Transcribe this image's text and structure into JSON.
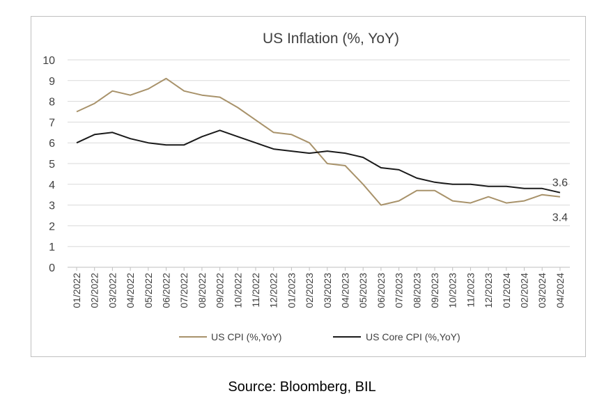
{
  "source": "Source: Bloomberg, BIL",
  "chart_data": {
    "type": "line",
    "title": "US Inflation (%, YoY)",
    "xlabel": "",
    "ylabel": "",
    "ylim": [
      0,
      10
    ],
    "yticks": [
      0,
      1,
      2,
      3,
      4,
      5,
      6,
      7,
      8,
      9,
      10
    ],
    "grid": true,
    "legend_position": "bottom",
    "categories": [
      "01/2022",
      "02/2022",
      "03/2022",
      "04/2022",
      "05/2022",
      "06/2022",
      "07/2022",
      "08/2022",
      "09/2022",
      "10/2022",
      "11/2022",
      "12/2022",
      "01/2023",
      "02/2023",
      "03/2023",
      "04/2023",
      "05/2023",
      "06/2023",
      "07/2023",
      "08/2023",
      "09/2023",
      "10/2023",
      "11/2023",
      "12/2023",
      "01/2024",
      "02/2024",
      "03/2024",
      "04/2024"
    ],
    "series": [
      {
        "name": "US CPI (%,YoY)",
        "color": "#a8926a",
        "values": [
          7.5,
          7.9,
          8.5,
          8.3,
          8.6,
          9.1,
          8.5,
          8.3,
          8.2,
          7.7,
          7.1,
          6.5,
          6.4,
          6.0,
          5.0,
          4.9,
          4.0,
          3.0,
          3.2,
          3.7,
          3.7,
          3.2,
          3.1,
          3.4,
          3.1,
          3.2,
          3.5,
          3.4
        ],
        "end_label": "3.4"
      },
      {
        "name": "US Core CPI (%,YoY)",
        "color": "#1a1a1a",
        "values": [
          6.0,
          6.4,
          6.5,
          6.2,
          6.0,
          5.9,
          5.9,
          6.3,
          6.6,
          6.3,
          6.0,
          5.7,
          5.6,
          5.5,
          5.6,
          5.5,
          5.3,
          4.8,
          4.7,
          4.3,
          4.1,
          4.0,
          4.0,
          3.9,
          3.9,
          3.8,
          3.8,
          3.6
        ],
        "end_label": "3.6"
      }
    ]
  }
}
